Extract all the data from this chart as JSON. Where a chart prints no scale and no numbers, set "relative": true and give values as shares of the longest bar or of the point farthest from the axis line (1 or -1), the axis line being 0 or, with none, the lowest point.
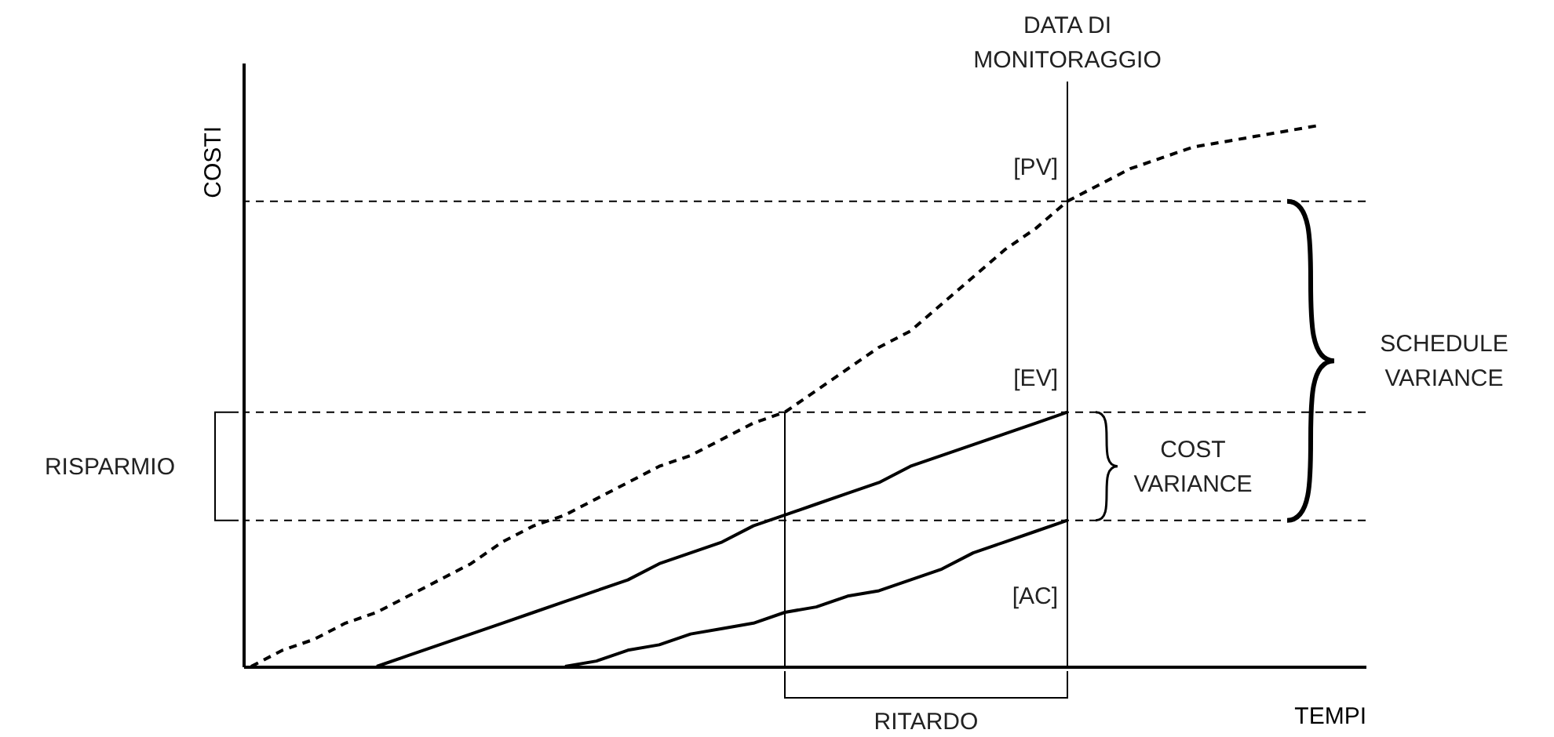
{
  "chart_data": {
    "type": "line",
    "relative": true,
    "xlabel": "TEMPI",
    "ylabel": "COSTI",
    "legend": false,
    "marker": "none",
    "categories": [
      null,
      null,
      null,
      null,
      null,
      null,
      null,
      null,
      null,
      null,
      null,
      null,
      null,
      null,
      null,
      null,
      null,
      null,
      null,
      null,
      null,
      null,
      null,
      null,
      null,
      null,
      null,
      null,
      null,
      null,
      null,
      null,
      null,
      null,
      null
    ],
    "series": [
      {
        "name": "[PV]",
        "color": "#000000",
        "line_style": "dashed",
        "values": [
          0,
          0.03,
          0.05,
          0.08,
          0.1,
          0.13,
          0.16,
          0.19,
          0.23,
          0.26,
          0.28,
          0.31,
          0.34,
          0.37,
          0.39,
          0.42,
          0.45,
          0.47,
          0.51,
          0.55,
          0.59,
          0.62,
          0.67,
          0.72,
          0.77,
          0.81,
          0.86,
          0.89,
          0.92,
          0.94,
          0.96,
          0.97,
          0.98,
          0.99,
          1
        ]
      },
      {
        "name": "[EV]",
        "color": "#000000",
        "line_style": "solid",
        "values": [
          null,
          null,
          null,
          null,
          0,
          0.02,
          0.04,
          0.06,
          0.08,
          0.1,
          0.12,
          0.14,
          0.16,
          0.19,
          0.21,
          0.23,
          0.26,
          0.28,
          0.3,
          0.32,
          0.34,
          0.37,
          0.39,
          0.41,
          0.43,
          0.45,
          0.47,
          null,
          null,
          null,
          null,
          null,
          null,
          null,
          null
        ]
      },
      {
        "name": "[AC]",
        "color": "#000000",
        "line_style": "solid",
        "values": [
          null,
          null,
          null,
          null,
          null,
          null,
          null,
          null,
          null,
          null,
          0,
          0.01,
          0.03,
          0.04,
          0.06,
          0.07,
          0.08,
          0.1,
          0.11,
          0.13,
          0.14,
          0.16,
          0.18,
          0.21,
          0.23,
          0.25,
          0.27,
          null,
          null,
          null,
          null,
          null,
          null,
          null,
          null
        ]
      }
    ],
    "ref_lines": [
      {
        "axis": "y",
        "value": 0.86,
        "color": "#000000",
        "line_style": "dashed"
      },
      {
        "axis": "y",
        "value": 0.47,
        "color": "#000000",
        "line_style": "dashed"
      },
      {
        "axis": "y",
        "value": 0.27,
        "color": "#000000",
        "line_style": "dashed"
      }
    ],
    "annotations": [
      "RISPARMIO",
      "RITARDO",
      "COST VARIANCE",
      "SCHEDULE VARIANCE",
      "DATA DI MONITORAGGIO"
    ]
  }
}
